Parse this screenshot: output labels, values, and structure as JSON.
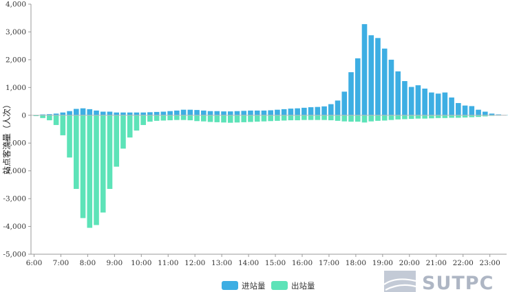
{
  "chart_data": {
    "type": "bar",
    "title": "",
    "xlabel": "",
    "ylabel": "站点客流量（人次）",
    "ylim": [
      -5000,
      4000
    ],
    "yticks": [
      -5000,
      -4000,
      -3000,
      -2000,
      -1000,
      0,
      1000,
      2000,
      3000,
      4000
    ],
    "ytick_labels": [
      "-5,000",
      "-4,000",
      "-3,000",
      "-2,000",
      "-1,000",
      "0",
      "1,000",
      "2,000",
      "3,000",
      "4,000"
    ],
    "xtick_labels": [
      "6:00",
      "7:00",
      "8:00",
      "9:00",
      "10:00",
      "11:00",
      "12:00",
      "13:00",
      "14:00",
      "15:00",
      "16:00",
      "17:00",
      "18:00",
      "19:00",
      "20:00",
      "21:00",
      "22:00",
      "23:00"
    ],
    "interval_minutes": 15,
    "start_time": "6:00",
    "grid": false,
    "legend_position": "bottom-center",
    "series": [
      {
        "name": "进站量",
        "color": "#3daee3",
        "values": [
          10,
          30,
          40,
          60,
          100,
          150,
          230,
          250,
          220,
          170,
          130,
          130,
          100,
          100,
          100,
          100,
          100,
          110,
          120,
          130,
          150,
          170,
          200,
          200,
          190,
          170,
          150,
          150,
          140,
          140,
          150,
          160,
          170,
          170,
          170,
          180,
          200,
          220,
          240,
          250,
          270,
          290,
          300,
          320,
          400,
          530,
          850,
          1550,
          2050,
          3280,
          2880,
          2780,
          2400,
          2000,
          1580,
          1230,
          1020,
          1080,
          960,
          820,
          780,
          820,
          640,
          440,
          350,
          330,
          200,
          130,
          60,
          30,
          10,
          0
        ]
      },
      {
        "name": "出站量",
        "color": "#5de3b8",
        "values": [
          -30,
          -100,
          -180,
          -350,
          -720,
          -1520,
          -2650,
          -3700,
          -4050,
          -3950,
          -3500,
          -2650,
          -1850,
          -1200,
          -800,
          -550,
          -350,
          -230,
          -200,
          -190,
          -180,
          -170,
          -170,
          -180,
          -210,
          -220,
          -240,
          -250,
          -260,
          -270,
          -260,
          -250,
          -240,
          -230,
          -220,
          -210,
          -200,
          -190,
          -180,
          -180,
          -170,
          -170,
          -170,
          -170,
          -180,
          -200,
          -220,
          -230,
          -230,
          -260,
          -220,
          -200,
          -190,
          -170,
          -150,
          -140,
          -130,
          -120,
          -120,
          -110,
          -100,
          -100,
          -90,
          -90,
          -80,
          -70,
          -60,
          -40,
          -20,
          -10,
          -5,
          0
        ]
      }
    ]
  },
  "watermark": {
    "text": "SUTPC"
  }
}
